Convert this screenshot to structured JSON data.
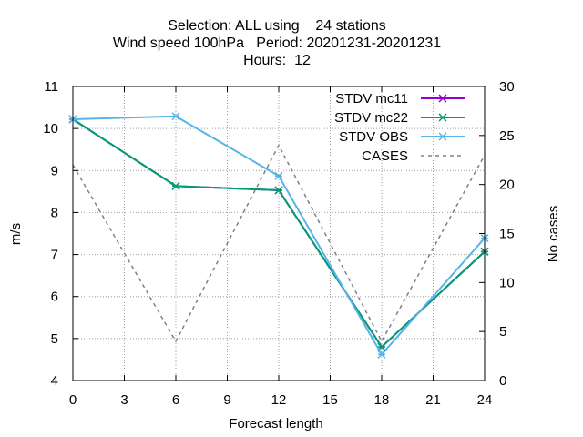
{
  "chart_data": {
    "type": "line",
    "title_lines": [
      "Selection: ALL using    24 stations",
      "Wind speed 100hPa   Period: 20201231-20201231",
      "Hours:  12"
    ],
    "xlabel": "Forecast length",
    "ylabel": "m/s",
    "y2label": "No cases",
    "xlim": [
      0,
      24
    ],
    "ylim": [
      4,
      11
    ],
    "y2lim": [
      0,
      30
    ],
    "xticks": [
      0,
      3,
      6,
      9,
      12,
      15,
      18,
      21,
      24
    ],
    "yticks": [
      4,
      5,
      6,
      7,
      8,
      9,
      10,
      11
    ],
    "y2ticks": [
      0,
      5,
      10,
      15,
      20,
      25,
      30
    ],
    "grid": true,
    "legend_position": "top-right",
    "series": [
      {
        "name": "STDV mc11",
        "axis": "y",
        "x": [
          0,
          6,
          12,
          18,
          24
        ],
        "values": [
          10.22,
          8.63,
          8.53,
          4.8,
          7.07
        ],
        "color": "#9400d3",
        "dash": "solid",
        "marker": "cross"
      },
      {
        "name": "STDV mc22",
        "axis": "y",
        "x": [
          0,
          6,
          12,
          18,
          24
        ],
        "values": [
          10.22,
          8.63,
          8.53,
          4.8,
          7.07
        ],
        "color": "#009e73",
        "dash": "solid",
        "marker": "cross"
      },
      {
        "name": "STDV OBS",
        "axis": "y",
        "x": [
          0,
          6,
          12,
          18,
          24
        ],
        "values": [
          10.22,
          10.29,
          8.87,
          4.62,
          7.39
        ],
        "color": "#56b4e9",
        "dash": "solid",
        "marker": "cross"
      },
      {
        "name": "CASES",
        "axis": "y2",
        "x": [
          0,
          6,
          12,
          18,
          24
        ],
        "values": [
          22,
          4,
          24,
          4,
          23
        ],
        "color": "#808080",
        "dash": "dashed",
        "marker": "none"
      }
    ]
  }
}
